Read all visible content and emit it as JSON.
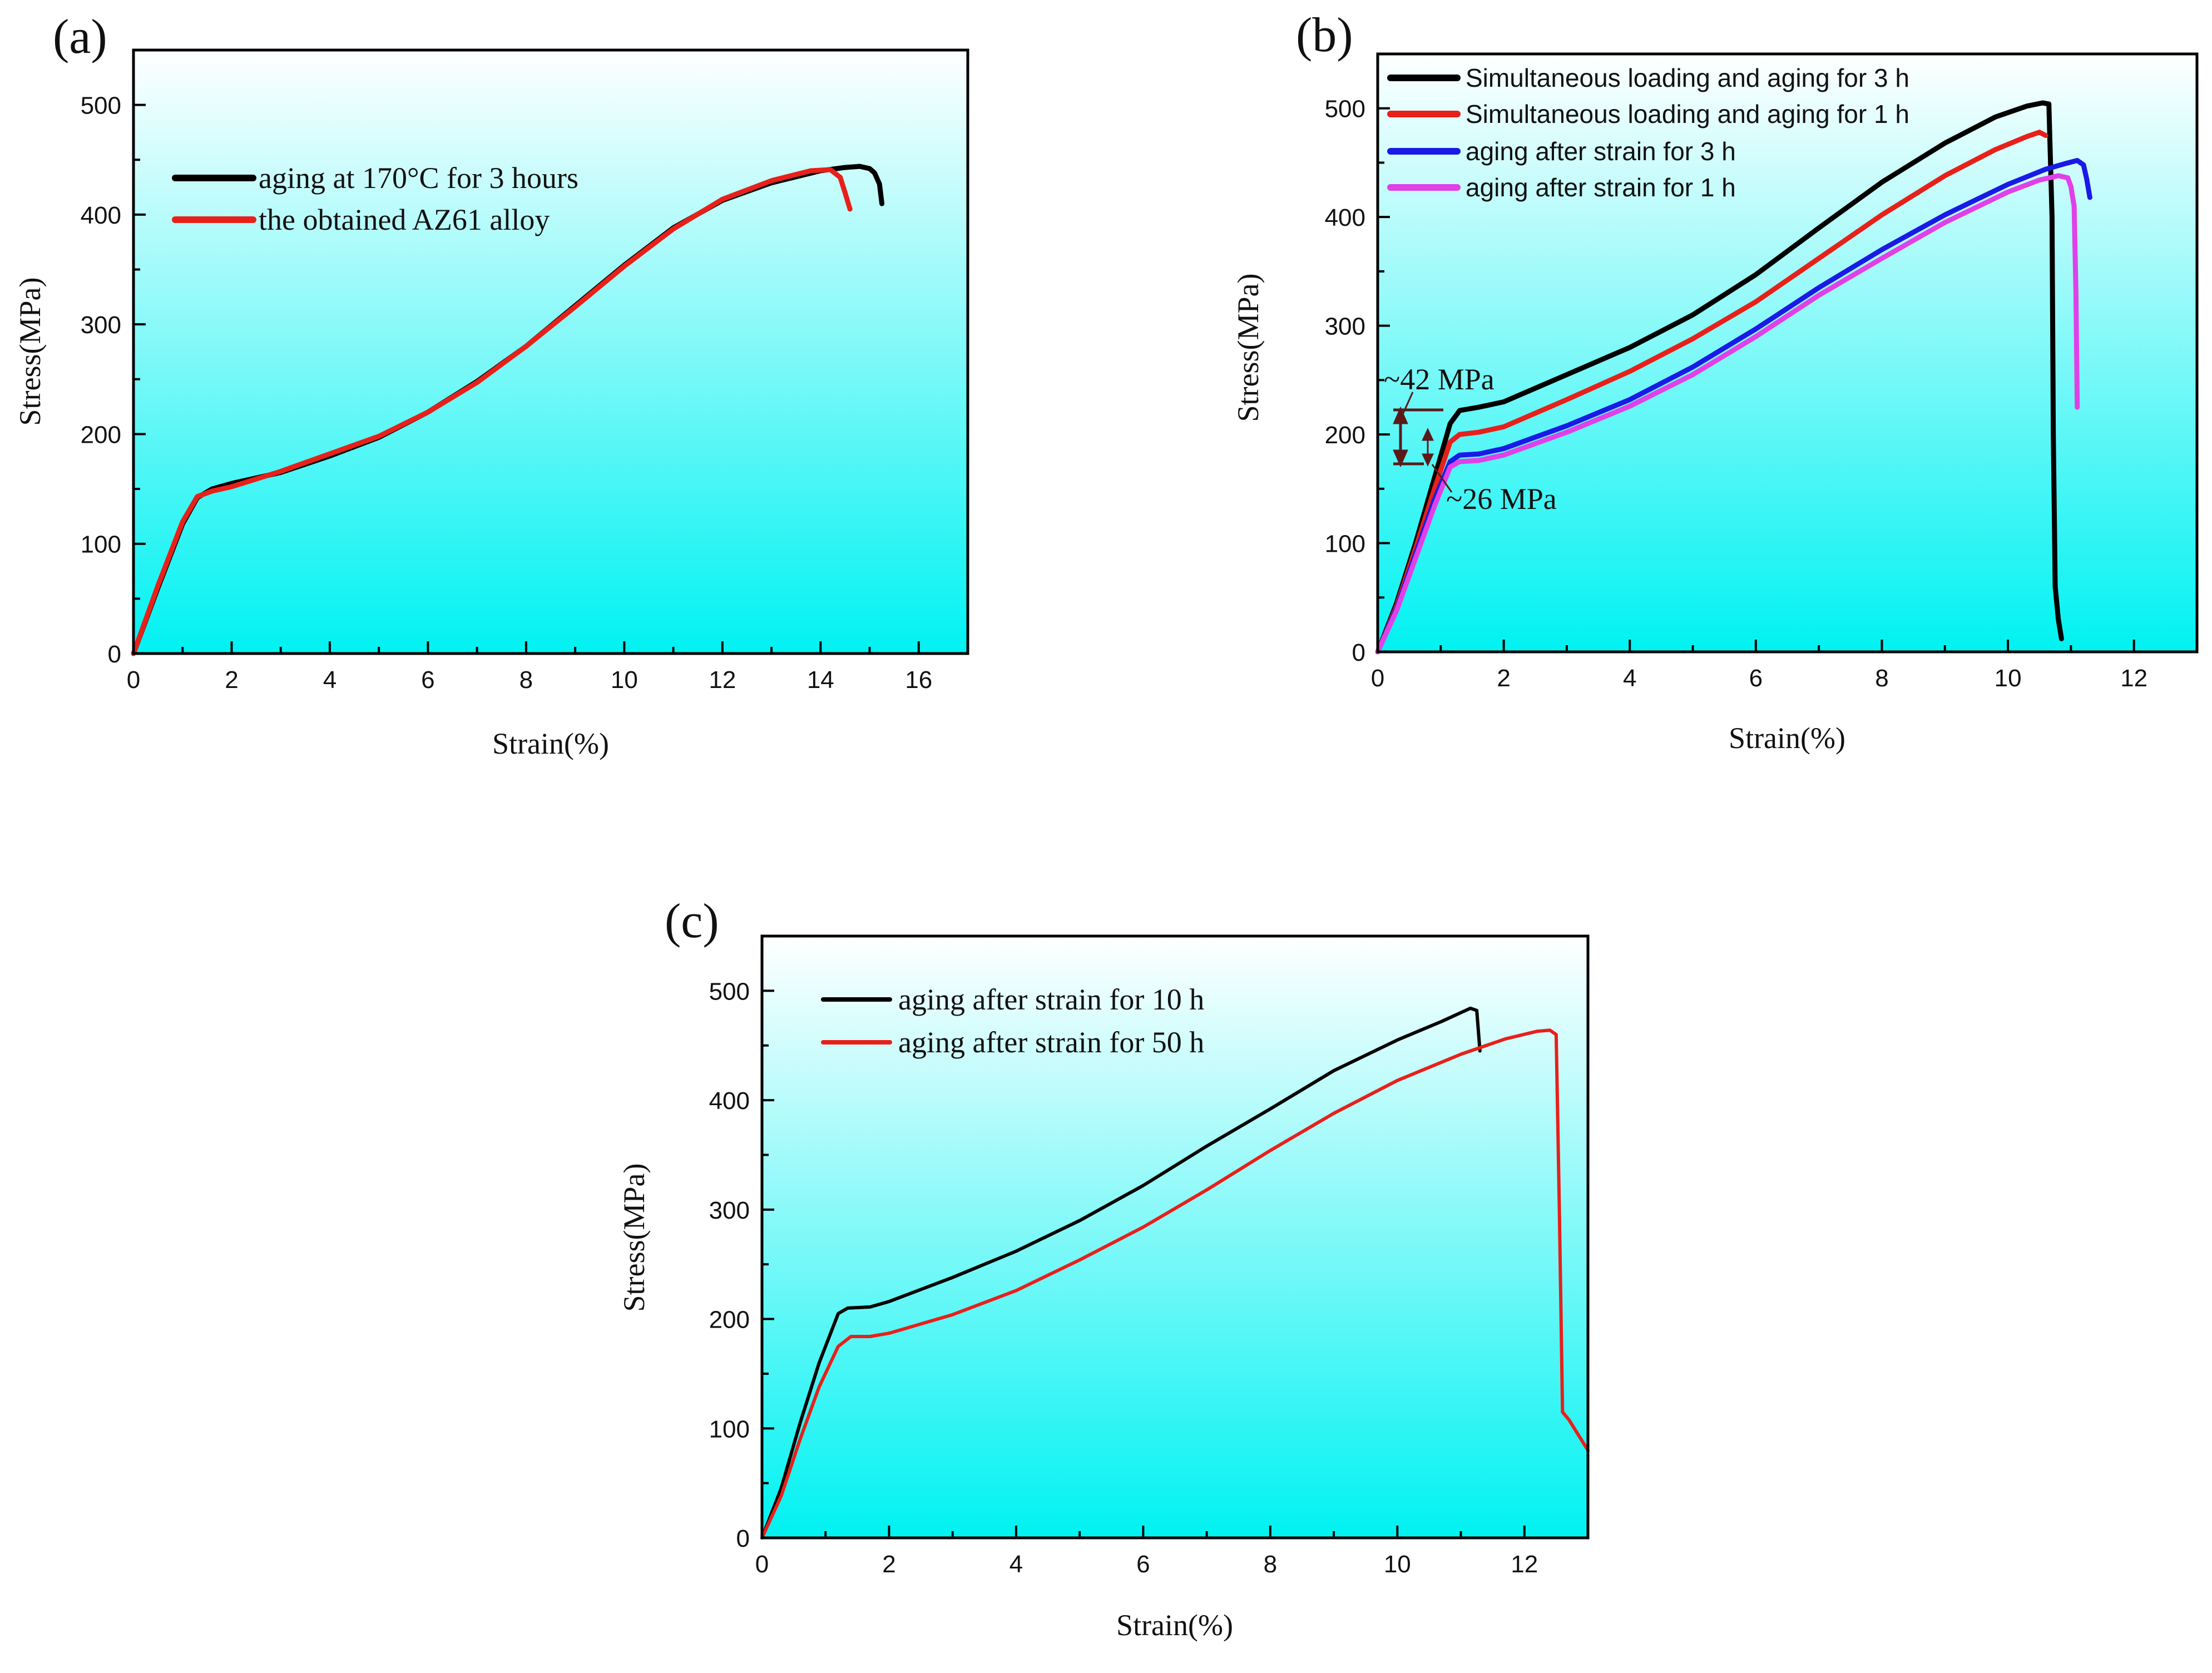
{
  "chart_data": [
    {
      "panel": "(a)",
      "type": "line",
      "xlabel": "Strain(%)",
      "ylabel": "Stress(MPa)",
      "xlim": [
        0,
        17
      ],
      "ylim": [
        0,
        550
      ],
      "xticks": [
        0,
        2,
        4,
        6,
        8,
        10,
        12,
        14,
        16
      ],
      "yticks": [
        0,
        100,
        200,
        300,
        400,
        500
      ],
      "legend_position": "top-left",
      "legend_style": "serif",
      "series": [
        {
          "name": "aging at 170°C for 3 hours",
          "color": "#000000",
          "x": [
            0,
            0.5,
            1.0,
            1.3,
            1.6,
            2.0,
            3.0,
            4.0,
            5.0,
            6.0,
            7.0,
            8.0,
            9.0,
            10.0,
            11.0,
            12.0,
            13.0,
            14.0,
            14.5,
            14.8,
            15.0,
            15.1,
            15.2,
            15.25
          ],
          "y": [
            0,
            60,
            118,
            142,
            150,
            155,
            165,
            180,
            197,
            220,
            248,
            280,
            317,
            354,
            388,
            413,
            429,
            440,
            443,
            444,
            442,
            438,
            428,
            410
          ]
        },
        {
          "name": "the obtained AZ61 alloy",
          "color": "#e8201a",
          "x": [
            0,
            0.5,
            1.0,
            1.3,
            1.6,
            2.0,
            3.0,
            4.0,
            5.0,
            6.0,
            7.0,
            8.0,
            9.0,
            10.0,
            11.0,
            12.0,
            13.0,
            13.8,
            14.2,
            14.4,
            14.5,
            14.6
          ],
          "y": [
            0,
            62,
            120,
            143,
            148,
            152,
            166,
            182,
            198,
            220,
            247,
            280,
            316,
            353,
            387,
            414,
            431,
            440,
            441,
            434,
            420,
            405
          ]
        }
      ]
    },
    {
      "panel": "(b)",
      "type": "line",
      "xlabel": "Strain(%)",
      "ylabel": "Stress(MPa)",
      "xlim": [
        0,
        13
      ],
      "ylim": [
        0,
        550
      ],
      "xticks": [
        0,
        2,
        4,
        6,
        8,
        10,
        12
      ],
      "yticks": [
        0,
        100,
        200,
        300,
        400,
        500
      ],
      "legend_position": "top-left",
      "legend_style": "sans",
      "annotations": [
        {
          "text": "~42 MPa",
          "x": 0.35,
          "y": 240
        },
        {
          "text": "~26 MPa",
          "x": 1.45,
          "y": 135
        }
      ],
      "series": [
        {
          "name": "Simultaneous loading and aging for 3 h",
          "color": "#000000",
          "x": [
            0,
            0.3,
            0.6,
            0.9,
            1.15,
            1.3,
            1.6,
            2.0,
            3.0,
            4.0,
            5.0,
            6.0,
            7.0,
            8.0,
            9.0,
            9.8,
            10.3,
            10.55,
            10.65,
            10.7,
            10.72,
            10.75,
            10.8,
            10.85
          ],
          "y": [
            0,
            45,
            100,
            160,
            210,
            222,
            225,
            230,
            255,
            280,
            310,
            347,
            390,
            432,
            468,
            492,
            502,
            505,
            504,
            400,
            200,
            60,
            30,
            12
          ]
        },
        {
          "name": "Simultaneous loading and aging for 1 h",
          "color": "#e8201a",
          "x": [
            0,
            0.3,
            0.6,
            0.9,
            1.15,
            1.3,
            1.6,
            2.0,
            3.0,
            4.0,
            5.0,
            6.0,
            7.0,
            8.0,
            9.0,
            9.8,
            10.3,
            10.5,
            10.6
          ],
          "y": [
            0,
            42,
            95,
            150,
            193,
            200,
            202,
            207,
            232,
            258,
            288,
            322,
            362,
            402,
            438,
            462,
            474,
            478,
            475
          ]
        },
        {
          "name": "aging after strain for 3 h",
          "color": "#1a1ae6",
          "x": [
            0,
            0.3,
            0.6,
            0.9,
            1.15,
            1.3,
            1.6,
            2.0,
            3.0,
            4.0,
            5.0,
            6.0,
            7.0,
            8.0,
            9.0,
            10.0,
            10.6,
            10.9,
            11.1,
            11.2,
            11.25,
            11.3
          ],
          "y": [
            0,
            40,
            90,
            140,
            175,
            181,
            182,
            187,
            208,
            232,
            262,
            297,
            335,
            370,
            402,
            430,
            444,
            449,
            452,
            448,
            435,
            418
          ]
        },
        {
          "name": "aging after strain for 1 h",
          "color": "#e040e8",
          "x": [
            0,
            0.3,
            0.6,
            0.9,
            1.15,
            1.3,
            1.6,
            2.0,
            3.0,
            4.0,
            5.0,
            6.0,
            7.0,
            8.0,
            9.0,
            10.0,
            10.5,
            10.8,
            10.95,
            11.0,
            11.05,
            11.08,
            11.1
          ],
          "y": [
            0,
            38,
            86,
            134,
            170,
            175,
            176,
            181,
            202,
            226,
            255,
            290,
            328,
            362,
            395,
            423,
            434,
            438,
            436,
            428,
            410,
            330,
            225
          ]
        }
      ]
    },
    {
      "panel": "(c)",
      "type": "line",
      "xlabel": "Strain(%)",
      "ylabel": "Stress(MPa)",
      "xlim": [
        0,
        13
      ],
      "ylim": [
        0,
        550
      ],
      "xticks": [
        0,
        2,
        4,
        6,
        8,
        10,
        12
      ],
      "yticks": [
        0,
        100,
        200,
        300,
        400,
        500
      ],
      "legend_position": "top-left",
      "legend_style": "serif",
      "series": [
        {
          "name": "aging after strain for 10 h",
          "color": "#000000",
          "x": [
            0,
            0.3,
            0.6,
            0.9,
            1.2,
            1.35,
            1.7,
            2.0,
            3.0,
            4.0,
            5.0,
            6.0,
            7.0,
            8.0,
            9.0,
            10.0,
            10.7,
            11.0,
            11.15,
            11.25,
            11.3
          ],
          "y": [
            0,
            45,
            105,
            160,
            205,
            210,
            211,
            216,
            238,
            262,
            290,
            322,
            358,
            392,
            427,
            455,
            472,
            480,
            484,
            482,
            445
          ]
        },
        {
          "name": "aging after strain for 50 h",
          "color": "#e8201a",
          "x": [
            0,
            0.3,
            0.6,
            0.9,
            1.2,
            1.4,
            1.7,
            2.0,
            3.0,
            4.0,
            5.0,
            6.0,
            7.0,
            8.0,
            9.0,
            10.0,
            11.0,
            11.7,
            12.2,
            12.4,
            12.5,
            12.55,
            12.6,
            12.7,
            13.0
          ],
          "y": [
            0,
            38,
            90,
            138,
            175,
            184,
            184,
            187,
            204,
            226,
            254,
            284,
            318,
            354,
            388,
            418,
            442,
            456,
            463,
            464,
            460,
            300,
            115,
            108,
            80
          ]
        }
      ]
    }
  ]
}
